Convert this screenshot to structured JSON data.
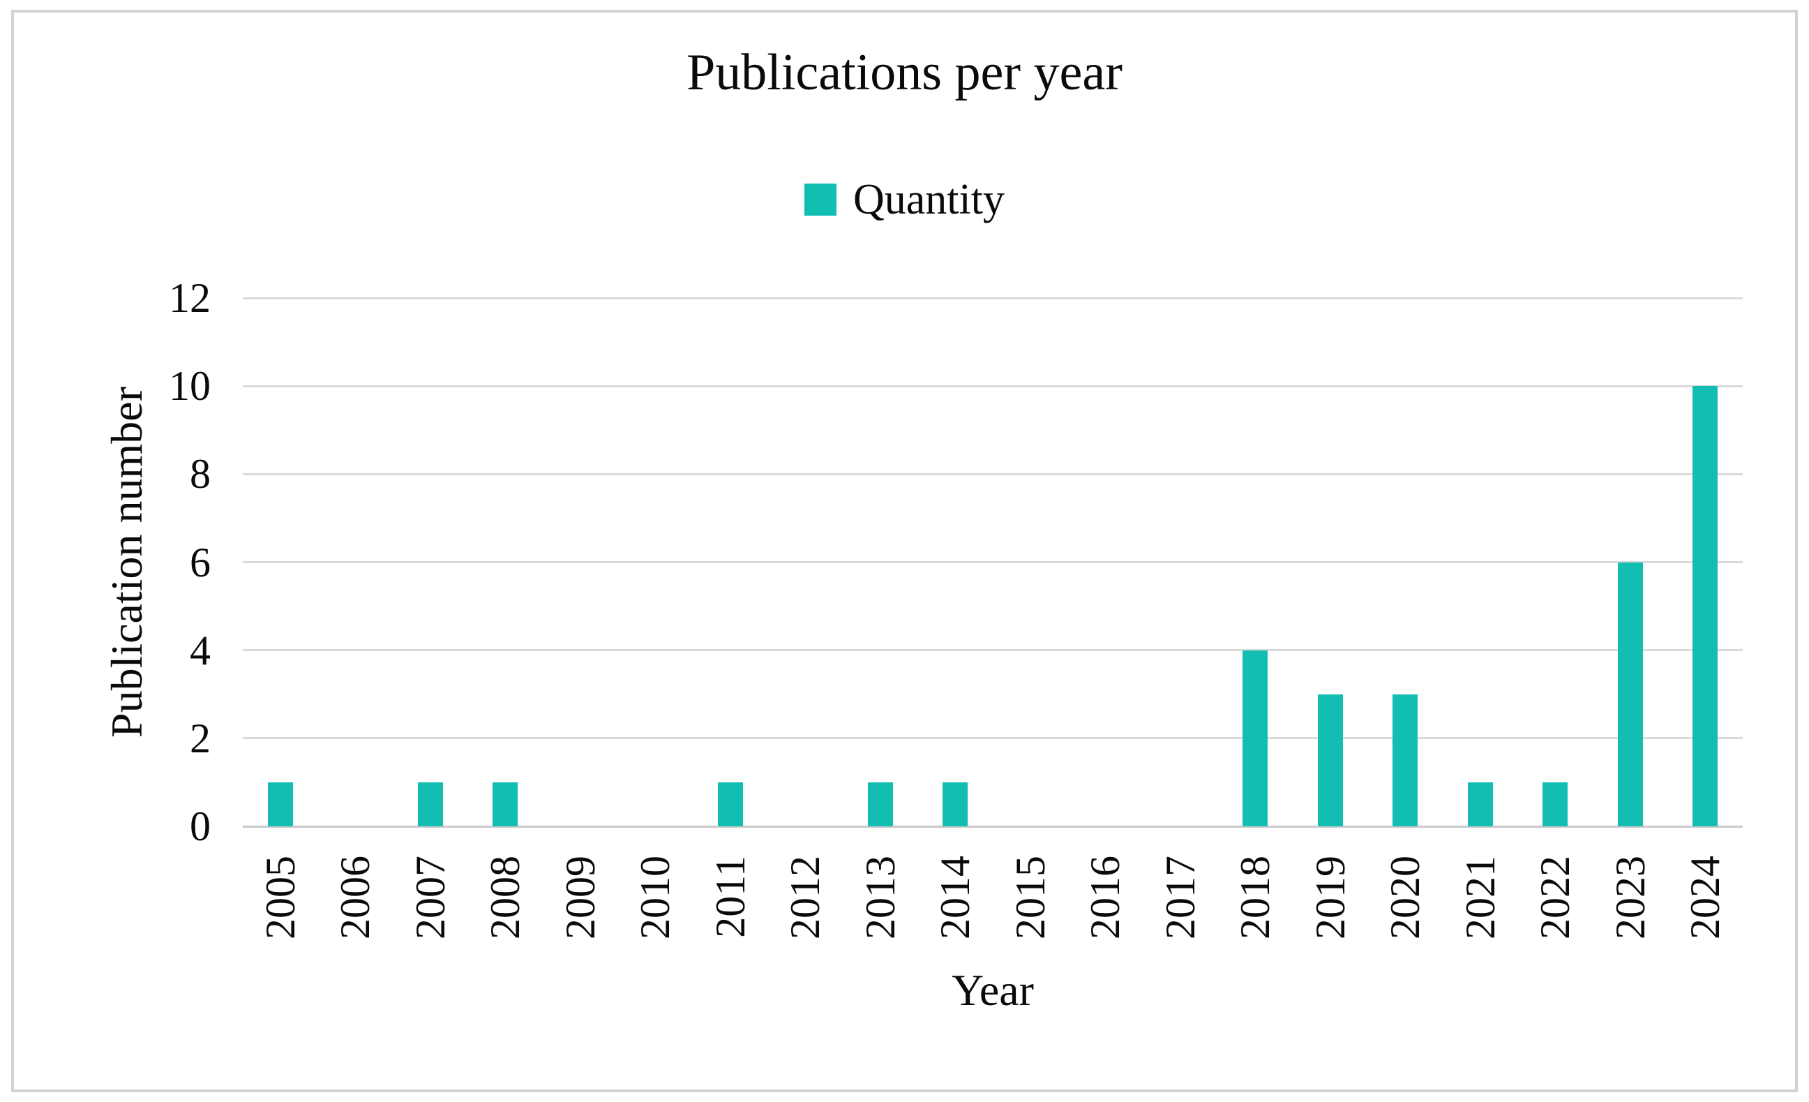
{
  "chart_data": {
    "type": "bar",
    "title": "Publications per year",
    "legend": [
      {
        "name": "Quantity",
        "color": "#12bdb2"
      }
    ],
    "legend_position": "top",
    "categories": [
      "2005",
      "2006",
      "2007",
      "2008",
      "2009",
      "2010",
      "2011",
      "2012",
      "2013",
      "2014",
      "2015",
      "2016",
      "2017",
      "2018",
      "2019",
      "2020",
      "2021",
      "2022",
      "2023",
      "2024"
    ],
    "values": [
      1,
      0,
      1,
      1,
      0,
      0,
      1,
      0,
      1,
      1,
      0,
      0,
      0,
      4,
      3,
      3,
      1,
      1,
      6,
      10
    ],
    "xlabel": "Year",
    "ylabel": "Publication number",
    "ylim": [
      0,
      12
    ],
    "yticks": [
      0,
      2,
      4,
      6,
      8,
      10,
      12
    ],
    "grid": true
  },
  "style": {
    "bar_color": "#12bdb2",
    "gridline_color": "#dadada",
    "axis_line_color": "#c9c9c9",
    "frame_border_color": "#d3d3d3",
    "text_color": "#0a0a0a"
  }
}
